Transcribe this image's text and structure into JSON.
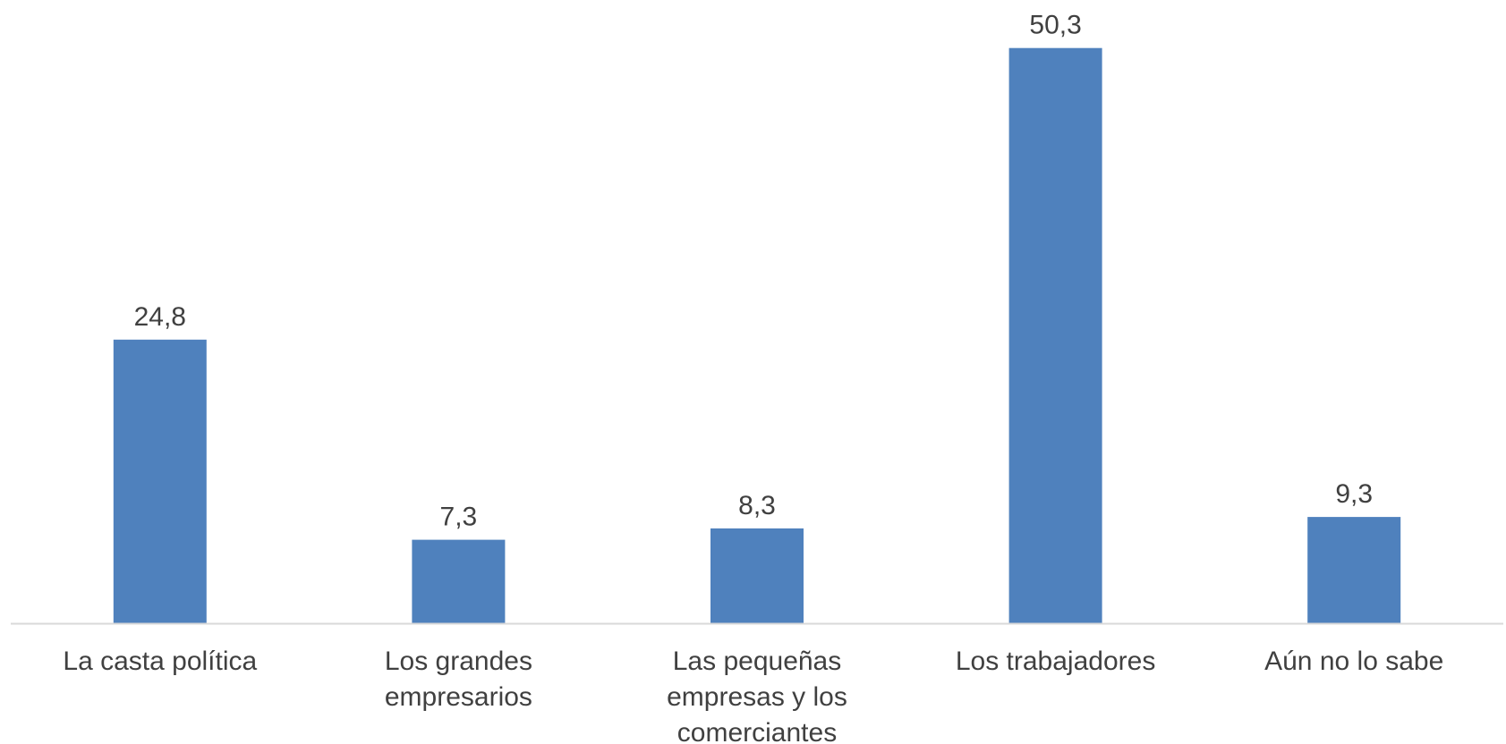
{
  "chart_data": {
    "type": "bar",
    "categories": [
      [
        "La casta política"
      ],
      [
        "Los grandes",
        "empresarios"
      ],
      [
        "Las pequeñas",
        "empresas y los",
        "comerciantes"
      ],
      [
        "Los trabajadores"
      ],
      [
        "Aún no lo sabe"
      ]
    ],
    "values": [
      24.8,
      7.3,
      8.3,
      50.3,
      9.3
    ],
    "value_labels": [
      "24,8",
      "7,3",
      "8,3",
      "50,3",
      "9,3"
    ],
    "title": "",
    "xlabel": "",
    "ylabel": "",
    "ylim": [
      0,
      54.5
    ],
    "grid": false,
    "legend": "none",
    "bar_color": "#4F81BD",
    "axis_color": "#D9D9D9",
    "text_color": "#404040"
  }
}
